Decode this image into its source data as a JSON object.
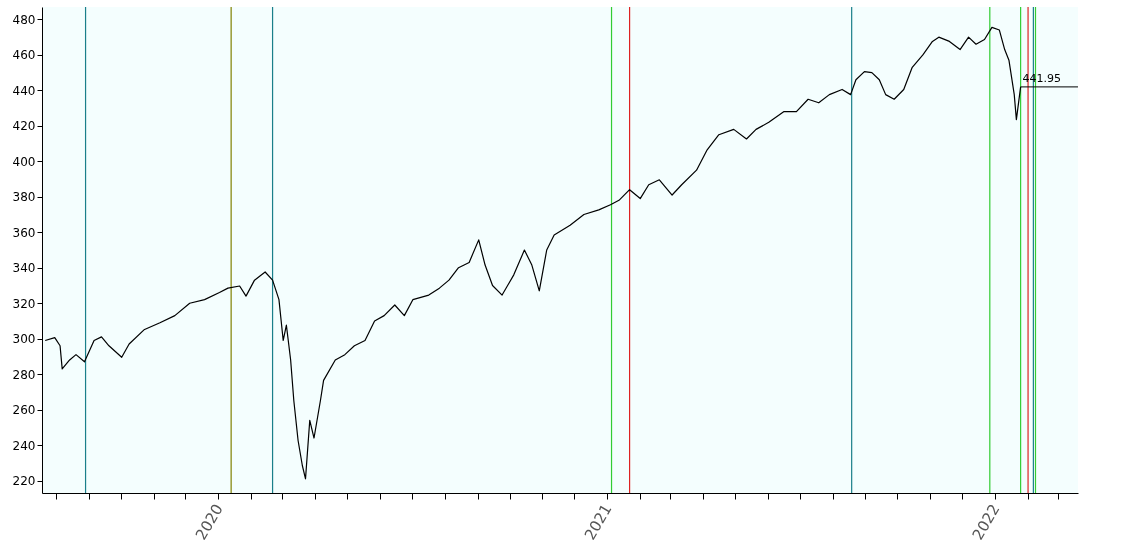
{
  "chart_data": {
    "type": "line",
    "x": [
      "2019-07-22",
      "2019-07-31",
      "2019-08-05",
      "2019-08-07",
      "2019-08-14",
      "2019-08-20",
      "2019-08-28",
      "2019-09-06",
      "2019-09-13",
      "2019-09-20",
      "2019-10-02",
      "2019-10-09",
      "2019-10-23",
      "2019-11-07",
      "2019-11-21",
      "2019-12-05",
      "2019-12-19",
      "2020-01-02",
      "2020-01-10",
      "2020-01-21",
      "2020-01-27",
      "2020-02-04",
      "2020-02-14",
      "2020-02-21",
      "2020-02-27",
      "2020-03-02",
      "2020-03-05",
      "2020-03-09",
      "2020-03-12",
      "2020-03-16",
      "2020-03-20",
      "2020-03-23",
      "2020-03-27",
      "2020-03-31",
      "2020-04-06",
      "2020-04-09",
      "2020-04-20",
      "2020-04-29",
      "2020-05-08",
      "2020-05-18",
      "2020-05-27",
      "2020-06-05",
      "2020-06-15",
      "2020-06-24",
      "2020-07-02",
      "2020-07-17",
      "2020-07-27",
      "2020-08-05",
      "2020-08-14",
      "2020-08-24",
      "2020-09-02",
      "2020-09-08",
      "2020-09-15",
      "2020-09-24",
      "2020-10-05",
      "2020-10-15",
      "2020-10-22",
      "2020-10-29",
      "2020-11-05",
      "2020-11-12",
      "2020-11-27",
      "2020-12-10",
      "2020-12-24",
      "2021-01-04",
      "2021-01-12",
      "2021-01-22",
      "2021-02-01",
      "2021-02-09",
      "2021-02-19",
      "2021-03-03",
      "2021-03-12",
      "2021-03-26",
      "2021-04-05",
      "2021-04-16",
      "2021-04-30",
      "2021-05-12",
      "2021-05-21",
      "2021-06-02",
      "2021-06-16",
      "2021-06-28",
      "2021-07-09",
      "2021-07-19",
      "2021-07-29",
      "2021-08-10",
      "2021-08-18",
      "2021-08-23",
      "2021-08-31",
      "2021-09-07",
      "2021-09-14",
      "2021-09-20",
      "2021-09-28",
      "2021-10-07",
      "2021-10-15",
      "2021-10-25",
      "2021-11-03",
      "2021-11-09",
      "2021-11-19",
      "2021-11-29",
      "2021-12-07",
      "2021-12-14",
      "2021-12-22",
      "2021-12-29",
      "2022-01-05",
      "2022-01-10",
      "2022-01-14",
      "2022-01-19",
      "2022-01-21",
      "2022-01-25"
    ],
    "series": [
      {
        "color": "#000000",
        "values": [
          299,
          300.6,
          296,
          283,
          288,
          291,
          287,
          299,
          301,
          296,
          289.5,
          297,
          305,
          309,
          313,
          320,
          322,
          326,
          328.5,
          329.7,
          324,
          333,
          337.6,
          333,
          322,
          299,
          307.6,
          288,
          265,
          242.6,
          228.5,
          221,
          254,
          244,
          265,
          276.5,
          288,
          291,
          296,
          299,
          310,
          313,
          319,
          313,
          322,
          324.6,
          328.5,
          333,
          340,
          343,
          355.7,
          341.5,
          330,
          324.6,
          336,
          350,
          341.5,
          327,
          350,
          358.5,
          364,
          370,
          372.6,
          375.5,
          378,
          384,
          379,
          386.8,
          389.6,
          381,
          386.8,
          395,
          406.5,
          415,
          418,
          412.6,
          418,
          422,
          428,
          428,
          435,
          433,
          437.6,
          440.5,
          437.6,
          446,
          450.6,
          450,
          446,
          437.6,
          435,
          440.5,
          453,
          460,
          467.6,
          470,
          467.6,
          463,
          470,
          466,
          468.7,
          475.5,
          474,
          463,
          457,
          437.6,
          423.5,
          441.95
        ]
      }
    ],
    "xlim": [
      "2019-07-19",
      "2022-03-20"
    ],
    "xticks": [
      {
        "value": "2019-08-01",
        "label": null
      },
      {
        "value": "2019-09-01",
        "label": null
      },
      {
        "value": "2019-10-01",
        "label": null
      },
      {
        "value": "2019-11-01",
        "label": null
      },
      {
        "value": "2019-12-01",
        "label": null
      },
      {
        "value": "2020-01-01",
        "label": "2020"
      },
      {
        "value": "2020-02-01",
        "label": null
      },
      {
        "value": "2020-03-01",
        "label": null
      },
      {
        "value": "2020-04-01",
        "label": null
      },
      {
        "value": "2020-05-01",
        "label": null
      },
      {
        "value": "2020-06-01",
        "label": null
      },
      {
        "value": "2020-07-01",
        "label": null
      },
      {
        "value": "2020-08-01",
        "label": null
      },
      {
        "value": "2020-09-01",
        "label": null
      },
      {
        "value": "2020-10-01",
        "label": null
      },
      {
        "value": "2020-11-01",
        "label": null
      },
      {
        "value": "2020-12-01",
        "label": null
      },
      {
        "value": "2021-01-01",
        "label": "2021"
      },
      {
        "value": "2021-02-01",
        "label": null
      },
      {
        "value": "2021-03-01",
        "label": null
      },
      {
        "value": "2021-04-01",
        "label": null
      },
      {
        "value": "2021-05-01",
        "label": null
      },
      {
        "value": "2021-06-01",
        "label": null
      },
      {
        "value": "2021-07-01",
        "label": null
      },
      {
        "value": "2021-08-01",
        "label": null
      },
      {
        "value": "2021-09-01",
        "label": null
      },
      {
        "value": "2021-10-01",
        "label": null
      },
      {
        "value": "2021-11-01",
        "label": null
      },
      {
        "value": "2021-12-01",
        "label": null
      },
      {
        "value": "2022-01-01",
        "label": "2022"
      },
      {
        "value": "2022-02-01",
        "label": null
      },
      {
        "value": "2022-03-01",
        "label": null
      }
    ],
    "ylim": [
      213,
      487
    ],
    "yticks": [
      220,
      240,
      260,
      280,
      300,
      320,
      340,
      360,
      380,
      400,
      420,
      440,
      460,
      480
    ],
    "ref_lines": [
      {
        "axis": "x",
        "value": "2019-08-29",
        "color": "#1a7f8a"
      },
      {
        "axis": "x",
        "value": "2020-01-13",
        "color": "#808000"
      },
      {
        "axis": "x",
        "value": "2020-02-21",
        "color": "#1a7f8a"
      },
      {
        "axis": "x",
        "value": "2021-01-05",
        "color": "#33cc33"
      },
      {
        "axis": "x",
        "value": "2021-01-22",
        "color": "#dd2222"
      },
      {
        "axis": "x",
        "value": "2021-08-19",
        "color": "#1a7f8a"
      },
      {
        "axis": "x",
        "value": "2021-12-27",
        "color": "#33cc33"
      },
      {
        "axis": "x",
        "value": "2022-01-25",
        "color": "#33cc33"
      },
      {
        "axis": "x",
        "value": "2022-02-01",
        "color": "#dd2222"
      },
      {
        "axis": "x",
        "value": "2022-02-06",
        "color": "#1a7f8a"
      },
      {
        "axis": "x",
        "value": "2022-02-08",
        "color": "#33cc33"
      }
    ],
    "annotations": [
      {
        "text": "441.95",
        "x": "2022-01-25",
        "y": 441.95
      }
    ],
    "grid": false,
    "marker": "none",
    "line_style": "solid"
  }
}
